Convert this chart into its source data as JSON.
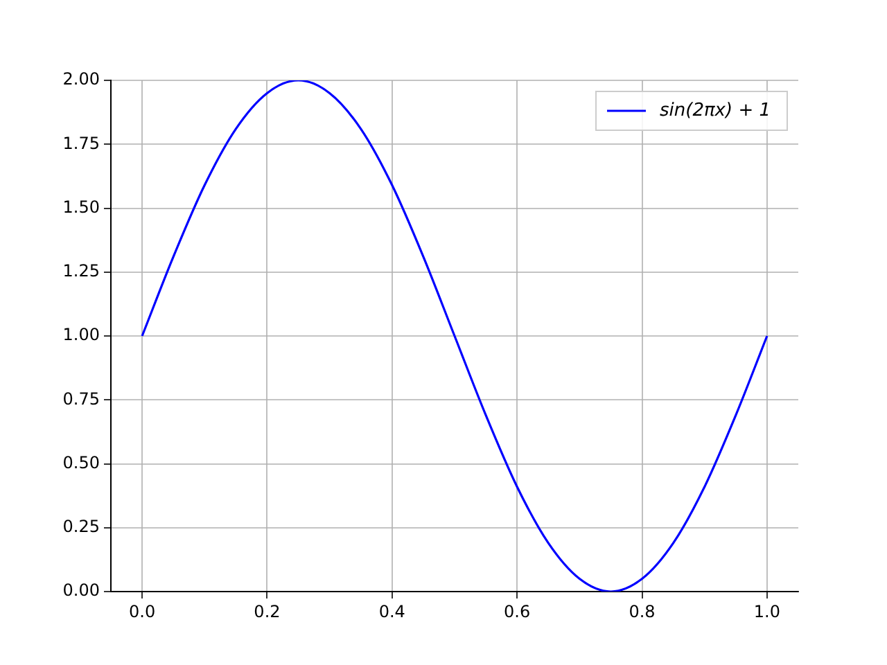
{
  "chart_data": {
    "type": "line",
    "x": [
      0,
      0.05,
      0.1,
      0.15,
      0.2,
      0.25,
      0.3,
      0.35,
      0.4,
      0.45,
      0.5,
      0.55,
      0.6,
      0.65,
      0.7,
      0.75,
      0.8,
      0.85,
      0.9,
      0.95,
      1
    ],
    "series": [
      {
        "name": "sin(2πx) + 1",
        "color": "#0000ff",
        "values": [
          1,
          1.31,
          1.59,
          1.81,
          1.95,
          2,
          1.95,
          1.81,
          1.59,
          1.31,
          1,
          0.69,
          0.41,
          0.19,
          0.05,
          0,
          0.05,
          0.19,
          0.41,
          0.69,
          1
        ]
      }
    ],
    "xlim": [
      -0.05,
      1.05
    ],
    "xticks": [
      {
        "value": 0,
        "label": "0.0"
      },
      {
        "value": 0.2,
        "label": "0.2"
      },
      {
        "value": 0.4,
        "label": "0.4"
      },
      {
        "value": 0.6,
        "label": "0.6"
      },
      {
        "value": 0.8,
        "label": "0.8"
      },
      {
        "value": 1,
        "label": "1.0"
      }
    ],
    "ylim": [
      0,
      2
    ],
    "yticks": [
      {
        "value": 0,
        "label": "0.00"
      },
      {
        "value": 0.25,
        "label": "0.25"
      },
      {
        "value": 0.5,
        "label": "0.50"
      },
      {
        "value": 0.75,
        "label": "0.75"
      },
      {
        "value": 1,
        "label": "1.00"
      },
      {
        "value": 1.25,
        "label": "1.25"
      },
      {
        "value": 1.5,
        "label": "1.50"
      },
      {
        "value": 1.75,
        "label": "1.75"
      },
      {
        "value": 2,
        "label": "2.00"
      }
    ],
    "grid": true,
    "legend": "top right",
    "marker": "none",
    "line_style": "solid"
  }
}
